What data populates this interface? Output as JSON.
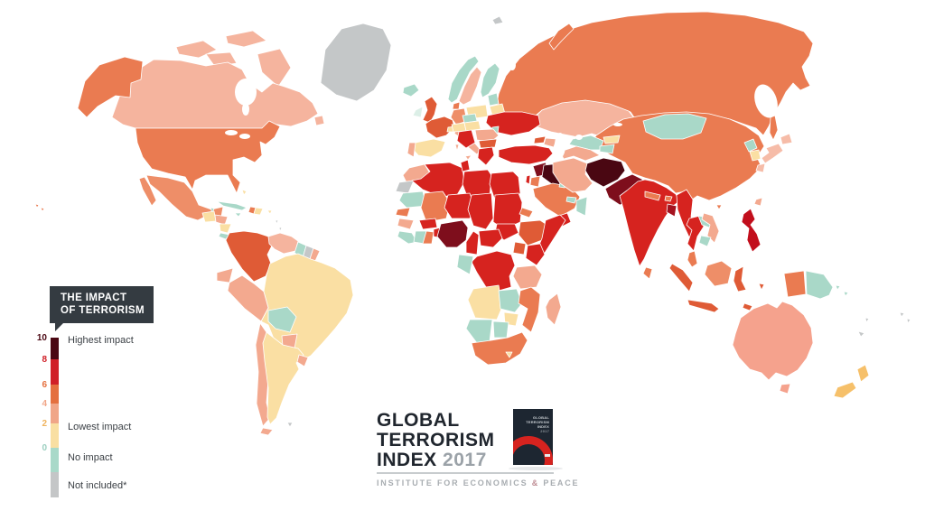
{
  "impact_card": {
    "line1": "THE IMPACT",
    "line2": "OF TERRORISM"
  },
  "legend": {
    "ticks": [
      {
        "value": "10",
        "color": "#4A0712"
      },
      {
        "value": "8",
        "color": "#D02028"
      },
      {
        "value": "6",
        "color": "#E4703F"
      },
      {
        "value": "4",
        "color": "#F0A688"
      },
      {
        "value": "2",
        "color": "#EFB35D"
      },
      {
        "value": "0",
        "color": "#9CCFC0"
      }
    ],
    "segment_colors": [
      "#4A0712",
      "#D02028",
      "#E4703F",
      "#F0A688",
      "#F9DFA2",
      "#A9D9C9",
      "#C4C6C7"
    ],
    "labels": [
      "Highest impact",
      "Lowest impact",
      "No impact",
      "Not included*"
    ]
  },
  "logo": {
    "line1": "GLOBAL",
    "line2": "TERRORISM",
    "line3": "INDEX",
    "year": "2017",
    "book_title": "GLOBAL TERRORISM INDEX",
    "book_year": "2017",
    "institute_pre": "INSTITUTE FOR ECONOMICS ",
    "institute_amp": "&",
    "institute_post": " PEACE"
  },
  "map": {
    "ocean": "#FFFFFF",
    "palette": {
      "l10": "#4A0712",
      "l9": "#7E0E1C",
      "l8d": "#A5131F",
      "l8c": "#C20E1C",
      "l8": "#D6231F",
      "l6": "#DF5B36",
      "l5": "#EA7B51",
      "l4d": "#EE8E68",
      "l4": "#F3A98F",
      "l4a": "#F5A28D",
      "l3": "#F5B49E",
      "l2p": "#F6BCA8",
      "l2": "#FADFA3",
      "l2o": "#F6C06A",
      "l0": "#A9D8C8",
      "l0p": "#DCEFE7",
      "na": "#C4C7C8"
    },
    "countries": {
      "russia": "l5",
      "sakhalin": "l5",
      "novaya-zemlya": "l5",
      "svalbard": "na",
      "kazakhstan": "l3",
      "china": "l5",
      "mongolia": "l0",
      "uzbekistan": "l0",
      "kyrgyzstan": "l2",
      "tajikistan": "l0",
      "turkmenistan": "l4",
      "georgia": "l6",
      "azerbaijan": "l4",
      "turkey": "l8",
      "syria": "l9",
      "iraq": "l10",
      "israel": "l8",
      "jordan": "l5",
      "saudi-arabia": "l5",
      "yemen": "l8",
      "oman": "l0",
      "uae": "l0",
      "kuwait": "l0",
      "iran": "l4",
      "afghanistan": "l10",
      "pakistan": "l9",
      "india": "l8",
      "nepal": "l5",
      "bhutan": "l5",
      "bangladesh": "l8d",
      "sri-lanka": "l5",
      "myanmar": "l8",
      "thailand": "l8",
      "laos": "l0",
      "vietnam": "l4",
      "cambodia": "l0",
      "malaysia": "l5",
      "sumatra": "l6",
      "java": "l6",
      "borneo": "l4d",
      "sulawesi": "l6",
      "timor": "l6",
      "moluccas": "l6",
      "papua-indonesia": "l5",
      "papua-new-guinea": "l0",
      "solomon-1": "l0",
      "solomon-2": "l0",
      "philippines": "l8c",
      "taiwan": "l4",
      "hainan": "l5",
      "north-korea": "l0",
      "south-korea": "l2",
      "japan-hokkaido": "l2p",
      "japan-honshu": "l2p",
      "japan-kyushu": "l2p",
      "iceland": "l0",
      "ireland": "l0p",
      "uk": "l6",
      "norway": "l0",
      "sweden": "l3",
      "finland": "l0",
      "denmark": "l5",
      "baltics": "l0",
      "belarus": "l2",
      "poland": "l2",
      "germany": "l4d",
      "france": "l6",
      "spain": "l2",
      "portugal": "l4",
      "italy": "l4",
      "sicily": "l4",
      "sardinia": "l4",
      "switzerland": "l2",
      "czech": "l0",
      "hungary": "l2",
      "austria": "l2",
      "ukraine": "l8",
      "moldova": "l0",
      "romania": "l4",
      "balkans-west": "l8",
      "bulgaria": "l6",
      "greece": "l8",
      "morocco": "l4",
      "western-sahara": "na",
      "algeria": "l8",
      "tunisia": "l8",
      "libya": "l8",
      "egypt": "l8",
      "mauritania": "l0",
      "mali": "l5",
      "senegal": "l5",
      "guinea": "l4",
      "sierra-leone-liberia": "l0",
      "ivory-coast": "l0",
      "ghana": "l5",
      "burkina-faso": "l8",
      "togo-benin": "l8",
      "niger": "l8",
      "nigeria": "l9",
      "chad": "l8",
      "sudan": "l8",
      "south-sudan": "l8",
      "eritrea": "l5",
      "ethiopia": "l6",
      "somalia": "l8",
      "cameroon": "l8",
      "central-african-republic": "l8",
      "uganda": "l6",
      "kenya": "l8",
      "drc": "l8",
      "gabon-congo": "l0",
      "tanzania": "l4",
      "angola": "l2",
      "zambia": "l0",
      "mozambique": "l5",
      "zimbabwe": "l2",
      "namibia": "l0",
      "botswana": "l0",
      "south-africa": "l5",
      "lesotho": "l2",
      "madagascar": "l4",
      "greenland": "na",
      "canada": "l3",
      "canada-arctic-1": "l3",
      "canada-arctic-2": "l3",
      "victoria-island": "l3",
      "baffin-island": "l3",
      "newfoundland": "l3",
      "alaska": "l5",
      "usa": "l5",
      "hawaii-1": "l5",
      "hawaii-2": "l5",
      "mexico": "l4d",
      "mexico-baja": "l4d",
      "belize": "l0",
      "guatemala": "l2",
      "honduras": "l4",
      "nicaragua": "l2",
      "costa-rica": "l0",
      "panama": "l4",
      "cuba": "l0",
      "jamaica": "l0",
      "haiti": "l5",
      "dominican-republic": "l2",
      "puerto-rico": "l2",
      "bahamas": "l2",
      "lesser-antilles-1": "na",
      "lesser-antilles-2": "na",
      "colombia": "l6",
      "venezuela": "l3",
      "guyana": "l0",
      "suriname": "na",
      "french-guiana": "l4",
      "ecuador": "l4",
      "peru": "l4",
      "brazil": "l2",
      "bolivia": "l0",
      "paraguay": "l4",
      "chile": "l4",
      "argentina": "l2",
      "uruguay": "l4",
      "tierra-del-fuego": "l4",
      "falklands": "na",
      "australia": "l4a",
      "tasmania": "l4a",
      "nz-north": "l2o",
      "nz-south": "l2o",
      "new-caledonia": "na",
      "vanuatu": "na",
      "fiji-1": "na",
      "fiji-2": "na"
    }
  }
}
